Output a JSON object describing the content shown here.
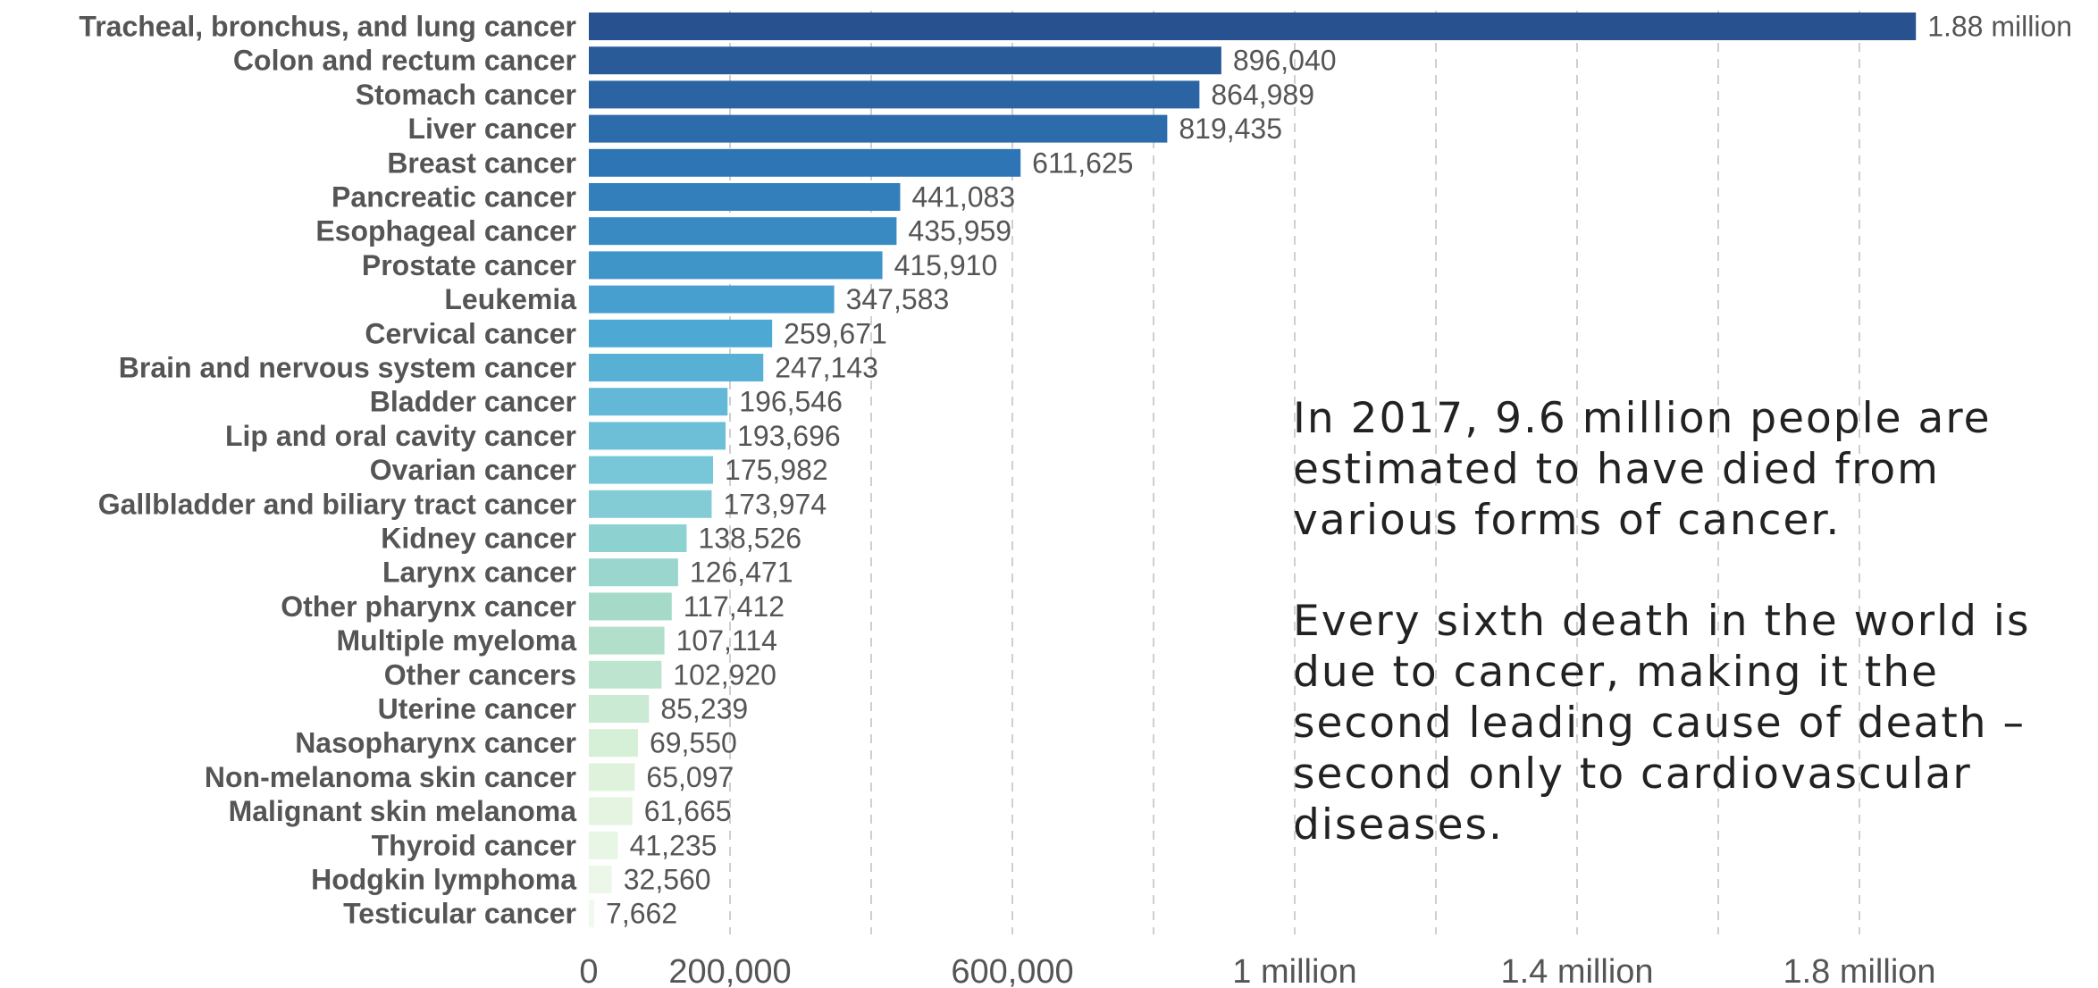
{
  "chart_data": {
    "type": "bar",
    "orientation": "horizontal",
    "categories": [
      "Tracheal, bronchus, and lung cancer",
      "Colon and rectum cancer",
      "Stomach cancer",
      "Liver cancer",
      "Breast cancer",
      "Pancreatic cancer",
      "Esophageal cancer",
      "Prostate cancer",
      "Leukemia",
      "Cervical cancer",
      "Brain and nervous system cancer",
      "Bladder cancer",
      "Lip and oral cavity cancer",
      "Ovarian cancer",
      "Gallbladder and biliary tract cancer",
      "Kidney cancer",
      "Larynx cancer",
      "Other pharynx cancer",
      "Multiple myeloma",
      "Other cancers",
      "Uterine cancer",
      "Nasopharynx cancer",
      "Non-melanoma skin cancer",
      "Malignant skin melanoma",
      "Thyroid cancer",
      "Hodgkin lymphoma",
      "Testicular cancer"
    ],
    "values": [
      1880000,
      896040,
      864989,
      819435,
      611625,
      441083,
      435959,
      415910,
      347583,
      259671,
      247143,
      196546,
      193696,
      175982,
      173974,
      138526,
      126471,
      117412,
      107114,
      102920,
      85239,
      69550,
      65097,
      61665,
      41235,
      32560,
      7662
    ],
    "value_labels": [
      "1.88 million",
      "896,040",
      "864,989",
      "819,435",
      "611,625",
      "441,083",
      "435,959",
      "415,910",
      "347,583",
      "259,671",
      "247,143",
      "196,546",
      "193,696",
      "175,982",
      "173,974",
      "138,526",
      "126,471",
      "117,412",
      "107,114",
      "102,920",
      "85,239",
      "69,550",
      "65,097",
      "61,665",
      "41,235",
      "32,560",
      "7,662"
    ],
    "title": "",
    "xlabel": "",
    "ylabel": "",
    "xlim": [
      0,
      2000000
    ],
    "x_ticks": [
      0,
      200000,
      600000,
      1000000,
      1400000,
      1800000
    ],
    "x_tick_labels": [
      "0",
      "200,000",
      "600,000",
      "1 million",
      "1.4 million",
      "1.8 million"
    ],
    "gridlines": [
      200000,
      400000,
      600000,
      800000,
      1000000,
      1200000,
      1400000,
      1600000,
      1800000
    ],
    "grid": true,
    "color_scale": [
      "#27528f",
      "#2e78b8",
      "#4aa6d2",
      "#77c7d9",
      "#a9dcc7",
      "#def2da",
      "#f0f9ee"
    ]
  },
  "annotation": {
    "paragraph1": "In 2017, 9.6 million people are estimated to have died from various forms of cancer.",
    "paragraph2": "Every sixth death in the world is due to cancer, making it the second leading cause of death – second only to cardiovascular diseases."
  }
}
